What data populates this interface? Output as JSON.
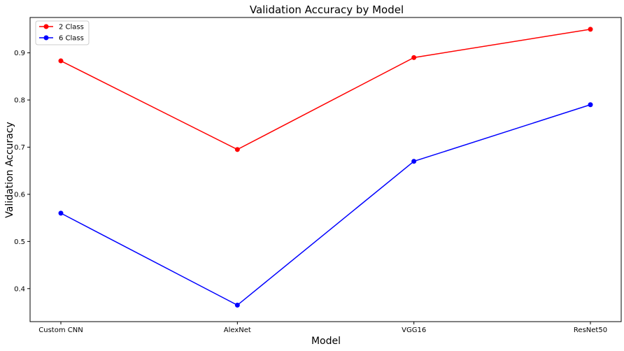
{
  "chart_data": {
    "type": "line",
    "title": "Validation Accuracy by Model",
    "xlabel": "Model",
    "ylabel": "Validation Accuracy",
    "categories": [
      "Custom CNN",
      "AlexNet",
      "VGG16",
      "ResNet50"
    ],
    "ylim": [
      0.33,
      0.975
    ],
    "yticks": [
      0.4,
      0.5,
      0.6,
      0.7,
      0.8,
      0.9
    ],
    "ytick_labels": [
      "0.4",
      "0.5",
      "0.6",
      "0.7",
      "0.8",
      "0.9"
    ],
    "grid": false,
    "legend_position": "top-left",
    "series": [
      {
        "name": "2 Class",
        "color": "#ff0000",
        "values": [
          0.883,
          0.695,
          0.89,
          0.95
        ]
      },
      {
        "name": "6 Class",
        "color": "#0000ff",
        "values": [
          0.56,
          0.365,
          0.67,
          0.79
        ]
      }
    ]
  }
}
